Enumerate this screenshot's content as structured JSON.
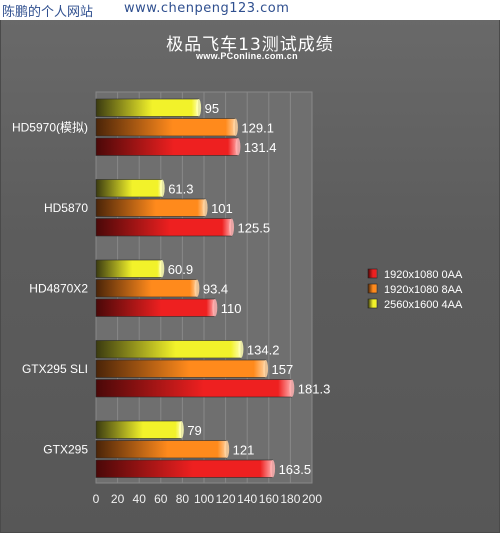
{
  "header": {
    "site_name": "陈鹏的个人网站",
    "site_url": "www.chenpeng123.com"
  },
  "chart_data": {
    "type": "bar",
    "orientation": "horizontal",
    "title": "极品飞车13测试成绩",
    "subtitle": "www.PConline.com.cn",
    "xlabel": "",
    "ylabel": "",
    "xlim": [
      0,
      200
    ],
    "ticks": [
      0,
      20,
      40,
      60,
      80,
      100,
      120,
      140,
      160,
      180,
      200
    ],
    "grid": true,
    "legend_position": "right",
    "categories": [
      "HD5970(模拟)",
      "HD5870",
      "HD4870X2",
      "GTX295 SLI",
      "GTX295"
    ],
    "series": [
      {
        "name": "2560x1600 4AA",
        "color": "#f2f22a",
        "values": [
          95,
          61.3,
          60.9,
          134.2,
          79
        ]
      },
      {
        "name": "1920x1080 8AA",
        "color": "#ff8a1c",
        "values": [
          129.1,
          101,
          93.4,
          157,
          121
        ]
      },
      {
        "name": "1920x1080 0AA",
        "color": "#ee2020",
        "values": [
          131.4,
          125.5,
          110,
          181.3,
          163.5
        ]
      }
    ],
    "legend_order": [
      "1920x1080 0AA",
      "1920x1080 8AA",
      "2560x1600 4AA"
    ]
  }
}
